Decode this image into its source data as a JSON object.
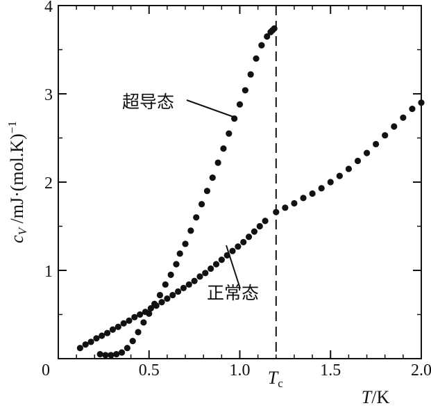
{
  "chart_data": {
    "type": "scatter",
    "title": "",
    "xlabel": "T/K",
    "ylabel": "c_V /mJ·(mol.K)^-1",
    "xlim": [
      0,
      2.0
    ],
    "ylim": [
      0,
      4
    ],
    "x_tick_labels": [
      "0",
      "0.5",
      "1.0",
      "1.5",
      "2.0"
    ],
    "x_ticks": [
      0,
      0.5,
      1.0,
      1.5,
      2.0
    ],
    "y_tick_labels": [
      "0",
      "1",
      "2",
      "3",
      "4"
    ],
    "y_ticks": [
      0,
      1,
      2,
      3,
      4
    ],
    "tc": {
      "x": 1.2,
      "label": "T",
      "sub": "c"
    },
    "series": [
      {
        "name": "超导态",
        "x": [
          0.23,
          0.26,
          0.29,
          0.32,
          0.35,
          0.38,
          0.41,
          0.44,
          0.47,
          0.5,
          0.53,
          0.56,
          0.59,
          0.62,
          0.65,
          0.67,
          0.7,
          0.73,
          0.76,
          0.79,
          0.82,
          0.85,
          0.88,
          0.91,
          0.94,
          0.97,
          1.0,
          1.03,
          1.06,
          1.09,
          1.12,
          1.15,
          1.17,
          1.18,
          1.19
        ],
        "y": [
          0.05,
          0.04,
          0.04,
          0.05,
          0.07,
          0.12,
          0.2,
          0.3,
          0.41,
          0.51,
          0.62,
          0.72,
          0.84,
          0.95,
          1.07,
          1.19,
          1.3,
          1.45,
          1.6,
          1.75,
          1.9,
          2.05,
          2.22,
          2.38,
          2.55,
          2.72,
          2.88,
          3.04,
          3.22,
          3.4,
          3.55,
          3.65,
          3.7,
          3.72,
          3.74
        ]
      },
      {
        "name": "正常态",
        "x": [
          0.12,
          0.15,
          0.18,
          0.21,
          0.24,
          0.27,
          0.3,
          0.33,
          0.36,
          0.39,
          0.42,
          0.45,
          0.48,
          0.51,
          0.54,
          0.57,
          0.6,
          0.63,
          0.66,
          0.69,
          0.72,
          0.75,
          0.78,
          0.81,
          0.84,
          0.87,
          0.9,
          0.93,
          0.96,
          0.99,
          1.02,
          1.05,
          1.08,
          1.11,
          1.14,
          1.2,
          1.25,
          1.3,
          1.35,
          1.4,
          1.45,
          1.5,
          1.55,
          1.6,
          1.65,
          1.7,
          1.75,
          1.8,
          1.85,
          1.9,
          1.95,
          2.0
        ],
        "y": [
          0.12,
          0.16,
          0.19,
          0.23,
          0.26,
          0.29,
          0.33,
          0.36,
          0.4,
          0.43,
          0.47,
          0.5,
          0.53,
          0.57,
          0.6,
          0.64,
          0.68,
          0.72,
          0.76,
          0.8,
          0.84,
          0.88,
          0.93,
          0.97,
          1.02,
          1.07,
          1.12,
          1.17,
          1.22,
          1.27,
          1.32,
          1.38,
          1.44,
          1.5,
          1.56,
          1.66,
          1.71,
          1.76,
          1.82,
          1.87,
          1.93,
          2.0,
          2.07,
          2.15,
          2.24,
          2.33,
          2.43,
          2.53,
          2.63,
          2.73,
          2.83,
          2.9
        ]
      }
    ],
    "annotations": [
      {
        "text": "超导态",
        "series": 0
      },
      {
        "text": "正常态",
        "series": 1
      }
    ]
  }
}
